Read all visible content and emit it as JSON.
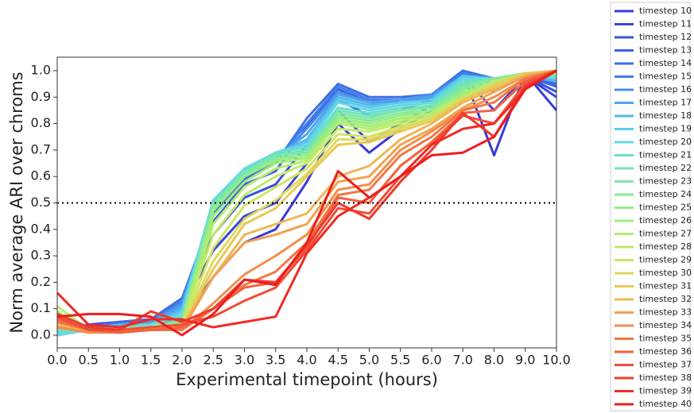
{
  "chart_data": {
    "type": "line",
    "x_label": "Experimental timepoint (hours)",
    "y_label": "Norm average ARI over chroms",
    "categories": [
      "0.0",
      "0.5",
      "1.0",
      "1.5",
      "2.0",
      "2.5",
      "3.0",
      "3.5",
      "4.0",
      "4.5",
      "5.0",
      "5.5",
      "6.0",
      "7.0",
      "8.0",
      "9.0",
      "10.0"
    ],
    "ylim": [
      -0.048,
      1.051
    ],
    "yticks": [
      {
        "value": 0,
        "label": "0.0"
      },
      {
        "value": 0.1,
        "label": "0.1"
      },
      {
        "value": 0.2,
        "label": "0.2"
      },
      {
        "value": 0.3,
        "label": "0.3"
      },
      {
        "value": 0.4,
        "label": "0.4"
      },
      {
        "value": 0.5,
        "label": "0.5"
      },
      {
        "value": 0.6,
        "label": "0.6"
      },
      {
        "value": 0.7,
        "label": "0.7"
      },
      {
        "value": 0.8,
        "label": "0.8"
      },
      {
        "value": 0.9,
        "label": "0.9"
      },
      {
        "value": 1,
        "label": "1.0"
      }
    ],
    "reference_line": 0.5,
    "grid": false,
    "legend": "outside-right",
    "series": [
      {
        "name": "timestep 10",
        "color": "#3a3ad8",
        "values": [
          0.02,
          0.03,
          0.03,
          0.05,
          0.05,
          0.22,
          0.35,
          0.4,
          0.58,
          0.8,
          0.69,
          0.78,
          0.85,
          0.99,
          0.68,
          0.99,
          0.85
        ]
      },
      {
        "name": "timestep 11",
        "color": "#3a46dc",
        "values": [
          0.01,
          0.04,
          0.05,
          0.06,
          0.1,
          0.32,
          0.45,
          0.5,
          0.65,
          0.85,
          0.73,
          0.8,
          0.87,
          0.98,
          0.85,
          0.98,
          0.9
        ]
      },
      {
        "name": "timestep 12",
        "color": "#3a52df",
        "values": [
          0.0,
          0.04,
          0.05,
          0.06,
          0.12,
          0.38,
          0.52,
          0.57,
          0.72,
          0.89,
          0.83,
          0.85,
          0.89,
          0.99,
          0.92,
          0.98,
          0.92
        ]
      },
      {
        "name": "timestep 13",
        "color": "#3d60e2",
        "values": [
          0.0,
          0.03,
          0.05,
          0.06,
          0.13,
          0.43,
          0.57,
          0.62,
          0.79,
          0.93,
          0.88,
          0.88,
          0.9,
          0.99,
          0.95,
          0.98,
          0.94
        ]
      },
      {
        "name": "timestep 14",
        "color": "#3f6ee4",
        "values": [
          0.0,
          0.03,
          0.05,
          0.06,
          0.14,
          0.46,
          0.59,
          0.65,
          0.82,
          0.95,
          0.9,
          0.9,
          0.91,
          1.0,
          0.97,
          0.98,
          0.95
        ]
      },
      {
        "name": "timestep 15",
        "color": "#437fe7",
        "values": [
          0.0,
          0.03,
          0.04,
          0.05,
          0.13,
          0.47,
          0.6,
          0.66,
          0.8,
          0.94,
          0.89,
          0.89,
          0.91,
          0.99,
          0.97,
          0.98,
          0.96
        ]
      },
      {
        "name": "timestep 16",
        "color": "#4891ea",
        "values": [
          0.0,
          0.03,
          0.04,
          0.05,
          0.12,
          0.48,
          0.6,
          0.66,
          0.78,
          0.92,
          0.88,
          0.89,
          0.91,
          0.98,
          0.97,
          0.98,
          0.96
        ]
      },
      {
        "name": "timestep 17",
        "color": "#4ea3ec",
        "values": [
          0.0,
          0.02,
          0.04,
          0.05,
          0.11,
          0.49,
          0.61,
          0.67,
          0.76,
          0.91,
          0.88,
          0.89,
          0.9,
          0.98,
          0.97,
          0.98,
          0.96
        ]
      },
      {
        "name": "timestep 18",
        "color": "#55b6ee",
        "values": [
          0.0,
          0.02,
          0.04,
          0.04,
          0.1,
          0.5,
          0.62,
          0.68,
          0.74,
          0.9,
          0.87,
          0.88,
          0.89,
          0.98,
          0.97,
          0.99,
          0.96
        ]
      },
      {
        "name": "timestep 19",
        "color": "#5cc8ed",
        "values": [
          0.0,
          0.02,
          0.03,
          0.04,
          0.09,
          0.51,
          0.62,
          0.69,
          0.73,
          0.89,
          0.86,
          0.88,
          0.89,
          0.98,
          0.97,
          0.99,
          0.97
        ]
      },
      {
        "name": "timestep 20",
        "color": "#63d8e4",
        "values": [
          0.0,
          0.02,
          0.03,
          0.04,
          0.08,
          0.51,
          0.63,
          0.69,
          0.72,
          0.88,
          0.85,
          0.87,
          0.88,
          0.97,
          0.97,
          0.99,
          0.97
        ]
      },
      {
        "name": "timestep 21",
        "color": "#6adfcf",
        "values": [
          0.01,
          0.02,
          0.03,
          0.04,
          0.07,
          0.5,
          0.62,
          0.69,
          0.71,
          0.86,
          0.84,
          0.86,
          0.88,
          0.96,
          0.97,
          0.99,
          0.98
        ]
      },
      {
        "name": "timestep 22",
        "color": "#72e4ba",
        "values": [
          0.02,
          0.02,
          0.03,
          0.03,
          0.06,
          0.5,
          0.62,
          0.68,
          0.7,
          0.85,
          0.83,
          0.85,
          0.87,
          0.95,
          0.97,
          0.99,
          0.98
        ]
      },
      {
        "name": "timestep 23",
        "color": "#7ce8a6",
        "values": [
          0.03,
          0.02,
          0.02,
          0.03,
          0.05,
          0.49,
          0.61,
          0.68,
          0.69,
          0.84,
          0.82,
          0.85,
          0.86,
          0.94,
          0.97,
          0.99,
          0.98
        ]
      },
      {
        "name": "timestep 24",
        "color": "#88ea95",
        "values": [
          0.05,
          0.02,
          0.02,
          0.03,
          0.05,
          0.48,
          0.6,
          0.67,
          0.68,
          0.83,
          0.81,
          0.84,
          0.85,
          0.93,
          0.97,
          0.99,
          0.99
        ]
      },
      {
        "name": "timestep 25",
        "color": "#96ec85",
        "values": [
          0.07,
          0.02,
          0.02,
          0.03,
          0.04,
          0.47,
          0.6,
          0.66,
          0.68,
          0.82,
          0.8,
          0.83,
          0.85,
          0.92,
          0.96,
          0.99,
          0.99
        ]
      },
      {
        "name": "timestep 26",
        "color": "#a3ed79",
        "values": [
          0.09,
          0.02,
          0.02,
          0.03,
          0.04,
          0.45,
          0.58,
          0.65,
          0.67,
          0.81,
          0.79,
          0.82,
          0.84,
          0.91,
          0.96,
          0.99,
          0.99
        ]
      },
      {
        "name": "timestep 27",
        "color": "#b2ed70",
        "values": [
          0.11,
          0.02,
          0.02,
          0.03,
          0.04,
          0.42,
          0.56,
          0.63,
          0.66,
          0.8,
          0.78,
          0.81,
          0.84,
          0.9,
          0.96,
          0.99,
          0.99
        ]
      },
      {
        "name": "timestep 28",
        "color": "#c2ea68",
        "values": [
          0.08,
          0.02,
          0.02,
          0.03,
          0.04,
          0.38,
          0.53,
          0.6,
          0.65,
          0.78,
          0.77,
          0.8,
          0.83,
          0.9,
          0.95,
          0.99,
          0.99
        ]
      },
      {
        "name": "timestep 29",
        "color": "#d2e462",
        "values": [
          0.06,
          0.02,
          0.02,
          0.03,
          0.03,
          0.33,
          0.49,
          0.56,
          0.63,
          0.76,
          0.75,
          0.79,
          0.82,
          0.9,
          0.95,
          0.99,
          1.0
        ]
      },
      {
        "name": "timestep 30",
        "color": "#dfd95c",
        "values": [
          0.05,
          0.01,
          0.02,
          0.02,
          0.03,
          0.28,
          0.44,
          0.51,
          0.61,
          0.74,
          0.74,
          0.78,
          0.82,
          0.89,
          0.95,
          0.99,
          1.0
        ]
      },
      {
        "name": "timestep 31",
        "color": "#e8c858",
        "values": [
          0.04,
          0.01,
          0.02,
          0.02,
          0.03,
          0.25,
          0.42,
          0.48,
          0.6,
          0.72,
          0.73,
          0.77,
          0.81,
          0.89,
          0.94,
          0.99,
          1.0
        ]
      },
      {
        "name": "timestep 32",
        "color": "#f0b655",
        "values": [
          0.04,
          0.01,
          0.02,
          0.02,
          0.03,
          0.22,
          0.38,
          0.42,
          0.46,
          0.6,
          0.64,
          0.74,
          0.8,
          0.88,
          0.93,
          0.98,
          1.0
        ]
      },
      {
        "name": "timestep 33",
        "color": "#f2a250",
        "values": [
          0.03,
          0.01,
          0.01,
          0.02,
          0.02,
          0.22,
          0.35,
          0.38,
          0.42,
          0.58,
          0.6,
          0.72,
          0.78,
          0.86,
          0.92,
          0.98,
          1.0
        ]
      },
      {
        "name": "timestep 34",
        "color": "#f38d4a",
        "values": [
          0.03,
          0.01,
          0.01,
          0.02,
          0.02,
          0.12,
          0.23,
          0.3,
          0.38,
          0.55,
          0.57,
          0.7,
          0.77,
          0.85,
          0.9,
          0.97,
          1.0
        ]
      },
      {
        "name": "timestep 35",
        "color": "#f27745",
        "values": [
          0.05,
          0.02,
          0.01,
          0.02,
          0.02,
          0.1,
          0.19,
          0.24,
          0.35,
          0.53,
          0.55,
          0.68,
          0.75,
          0.85,
          0.88,
          0.97,
          1.0
        ]
      },
      {
        "name": "timestep 36",
        "color": "#f2613e",
        "values": [
          0.06,
          0.02,
          0.01,
          0.02,
          0.03,
          0.1,
          0.18,
          0.2,
          0.33,
          0.52,
          0.5,
          0.64,
          0.73,
          0.84,
          0.85,
          0.96,
          1.0
        ]
      },
      {
        "name": "timestep 37",
        "color": "#f14c36",
        "values": [
          0.07,
          0.02,
          0.02,
          0.03,
          0.04,
          0.07,
          0.13,
          0.18,
          0.32,
          0.48,
          0.46,
          0.6,
          0.72,
          0.83,
          0.8,
          0.95,
          1.0
        ]
      },
      {
        "name": "timestep 38",
        "color": "#ef3a2d",
        "values": [
          0.08,
          0.03,
          0.02,
          0.09,
          0.05,
          0.1,
          0.21,
          0.2,
          0.34,
          0.5,
          0.44,
          0.58,
          0.7,
          0.84,
          0.75,
          0.94,
          1.0
        ]
      },
      {
        "name": "timestep 39",
        "color": "#ee2c24",
        "values": [
          0.16,
          0.04,
          0.03,
          0.06,
          0.06,
          0.03,
          0.05,
          0.07,
          0.31,
          0.45,
          0.52,
          0.6,
          0.72,
          0.78,
          0.8,
          0.93,
          1.0
        ]
      },
      {
        "name": "timestep 40",
        "color": "#ec1e1c",
        "values": [
          0.07,
          0.08,
          0.08,
          0.07,
          0.0,
          0.08,
          0.21,
          0.19,
          0.35,
          0.62,
          0.52,
          0.6,
          0.68,
          0.69,
          0.75,
          0.93,
          1.0
        ]
      }
    ]
  }
}
